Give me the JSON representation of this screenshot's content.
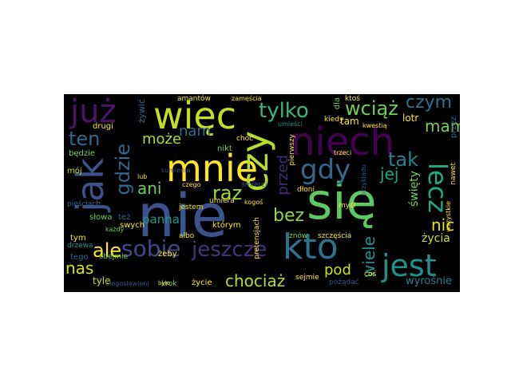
{
  "wordcloud": {
    "words": [
      {
        "text": "się",
        "color": "#5ec962"
      },
      {
        "text": "nie",
        "color": "#3b528b"
      },
      {
        "text": "niech",
        "color": "#440154"
      },
      {
        "text": "kto",
        "color": "#2c728e"
      },
      {
        "text": "więc",
        "color": "#c2df23"
      },
      {
        "text": "mnie",
        "color": "#fde725"
      },
      {
        "text": "czy",
        "color": "#b5de2b"
      },
      {
        "text": "już",
        "color": "#481467"
      },
      {
        "text": "jak",
        "color": "#3b528b"
      },
      {
        "text": "jest",
        "color": "#21918c"
      },
      {
        "text": "lecz",
        "color": "#22a884"
      },
      {
        "text": "gdy",
        "color": "#31688e"
      },
      {
        "text": "tylko",
        "color": "#35b779"
      },
      {
        "text": "gdzie",
        "color": "#31688e"
      },
      {
        "text": "sobie",
        "color": "#3e4989"
      },
      {
        "text": "jeszcze",
        "color": "#46327e"
      },
      {
        "text": "wciąż",
        "color": "#6ece58"
      },
      {
        "text": "czym",
        "color": "#2c728e"
      },
      {
        "text": "ten",
        "color": "#31688e"
      },
      {
        "text": "tak",
        "color": "#26828e"
      },
      {
        "text": "jej",
        "color": "#20a486"
      },
      {
        "text": "mam",
        "color": "#7ad151"
      },
      {
        "text": "może",
        "color": "#addc30"
      },
      {
        "text": "nam",
        "color": "#31688e"
      },
      {
        "text": "raz",
        "color": "#a0da39"
      },
      {
        "text": "ani",
        "color": "#6ece58"
      },
      {
        "text": "bez",
        "color": "#90d743"
      },
      {
        "text": "ale",
        "color": "#fde725"
      },
      {
        "text": "nas",
        "color": "#d2e21b"
      },
      {
        "text": "chociaż",
        "color": "#b5de2b"
      },
      {
        "text": "pod",
        "color": "#cae11f"
      },
      {
        "text": "wiele",
        "color": "#21918c"
      },
      {
        "text": "przed",
        "color": "#482878"
      },
      {
        "text": "nic",
        "color": "#e5e419"
      },
      {
        "text": "życia",
        "color": "#cae11f"
      },
      {
        "text": "panna",
        "color": "#1f988b"
      },
      {
        "text": "święty",
        "color": "#7ad151"
      },
      {
        "text": "wyrośnie",
        "color": "#26828e"
      },
      {
        "text": "amantów",
        "color": "#fde725"
      },
      {
        "text": "żywić",
        "color": "#31688e"
      },
      {
        "text": "drugi",
        "color": "#fde725"
      },
      {
        "text": "będzie",
        "color": "#7ad151"
      },
      {
        "text": "mój",
        "color": "#cae11f"
      },
      {
        "text": "pięściach",
        "color": "#31688e"
      },
      {
        "text": "słowa",
        "color": "#6ece58"
      },
      {
        "text": "też",
        "color": "#31688e"
      },
      {
        "text": "tym",
        "color": "#fde725"
      },
      {
        "text": "każdy",
        "color": "#6ece58"
      },
      {
        "text": "drzewa",
        "color": "#21918c"
      },
      {
        "text": "tego",
        "color": "#31688e"
      },
      {
        "text": "obejmie",
        "color": "#7ad151"
      },
      {
        "text": "tyle",
        "color": "#cae11f"
      },
      {
        "text": "błogosławieni",
        "color": "#3b528b"
      },
      {
        "text": "krok",
        "color": "#6ece58"
      },
      {
        "text": "życie",
        "color": "#fde725"
      },
      {
        "text": "śmierci",
        "color": "#3b528b"
      },
      {
        "text": "zamęścia",
        "color": "#fde725"
      },
      {
        "text": "ktoś",
        "color": "#fde725"
      },
      {
        "text": "dla",
        "color": "#6ece58"
      },
      {
        "text": "kiedy",
        "color": "#fde725"
      },
      {
        "text": "pierwszy",
        "color": "#fde725"
      },
      {
        "text": "nikt",
        "color": "#7ad151"
      },
      {
        "text": "choć",
        "color": "#fde725"
      },
      {
        "text": "umieści",
        "color": "#21918c"
      },
      {
        "text": "tam",
        "color": "#fde725"
      },
      {
        "text": "kwestią",
        "color": "#fde725"
      },
      {
        "text": "lotr",
        "color": "#fde725"
      },
      {
        "text": "przez",
        "color": "#31688e"
      },
      {
        "text": "nawet",
        "color": "#fde725"
      },
      {
        "text": "wszystkie",
        "color": "#fde725"
      },
      {
        "text": "dłoni",
        "color": "#fde725"
      },
      {
        "text": "trzeci",
        "color": "#fde725"
      },
      {
        "text": "myśl",
        "color": "#fde725"
      },
      {
        "text": "szczęścia",
        "color": "#fde725"
      },
      {
        "text": "znów",
        "color": "#7ad151"
      },
      {
        "text": "żeby",
        "color": "#fde725"
      },
      {
        "text": "było",
        "color": "#fde725"
      },
      {
        "text": "swych",
        "color": "#fde725"
      },
      {
        "text": "albo",
        "color": "#fde725"
      },
      {
        "text": "którym",
        "color": "#fde725"
      },
      {
        "text": "jestem",
        "color": "#fde725"
      },
      {
        "text": "umiera",
        "color": "#fde725"
      },
      {
        "text": "kogoś",
        "color": "#fde725"
      },
      {
        "text": "pretensjach",
        "color": "#fde725"
      },
      {
        "text": "sejmie",
        "color": "#fde725"
      },
      {
        "text": "pożądać",
        "color": "#3b528b"
      },
      {
        "text": "coś",
        "color": "#fde725"
      },
      {
        "text": "lub",
        "color": "#fde725"
      },
      {
        "text": "czego",
        "color": "#fde725"
      },
      {
        "text": "sumienia",
        "color": "#3b528b"
      },
      {
        "text": "przykładu",
        "color": "#3b528b"
      }
    ]
  }
}
